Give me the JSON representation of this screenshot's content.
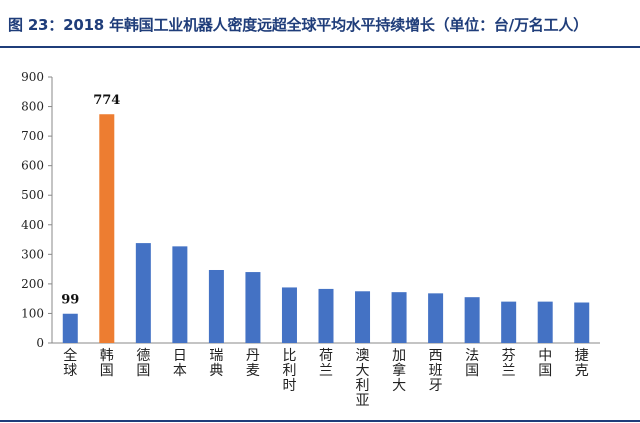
{
  "title": "图 23：2018 年韩国工业机器人密度远超全球平均水平持续增长（单位：台/万名工人）",
  "chart_data": {
    "type": "bar",
    "categories": [
      "全球",
      "韩国",
      "德国",
      "日本",
      "瑞典",
      "丹麦",
      "比利时",
      "荷兰",
      "澳大利亚",
      "加拿大",
      "西班牙",
      "法国",
      "芬兰",
      "中国",
      "捷克"
    ],
    "values": [
      99,
      774,
      338,
      327,
      247,
      240,
      188,
      183,
      175,
      172,
      168,
      155,
      140,
      140,
      137
    ],
    "data_labels": [
      {
        "category": "全球",
        "text": "99"
      },
      {
        "category": "韩国",
        "text": "774"
      }
    ],
    "highlight_category": "韩国",
    "colors": {
      "default": "#4472c4",
      "highlight": "#ed7d31"
    },
    "ylim": [
      0,
      900
    ],
    "yticks": [
      0,
      100,
      200,
      300,
      400,
      500,
      600,
      700,
      800,
      900
    ],
    "grid": false,
    "xlabel": "",
    "ylabel": ""
  }
}
